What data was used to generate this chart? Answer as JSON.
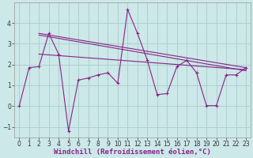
{
  "xlabel": "Windchill (Refroidissement éolien,°C)",
  "background_color": "#cce8e8",
  "grid_color": "#aacccc",
  "line_color": "#882288",
  "x_data": [
    0,
    1,
    2,
    3,
    4,
    5,
    6,
    7,
    8,
    9,
    10,
    11,
    12,
    13,
    14,
    15,
    16,
    17,
    18,
    19,
    20,
    21,
    22,
    23
  ],
  "series1": [
    0.0,
    1.85,
    1.9,
    3.5,
    2.5,
    -1.2,
    1.25,
    1.35,
    1.5,
    1.6,
    1.1,
    4.65,
    3.5,
    2.2,
    0.55,
    0.6,
    1.9,
    2.2,
    1.6,
    0.02,
    0.02,
    1.5,
    1.5,
    1.85
  ],
  "trend1_x": [
    2,
    23
  ],
  "trend1_y": [
    3.5,
    1.85
  ],
  "trend2_x": [
    2,
    23
  ],
  "trend2_y": [
    3.42,
    1.7
  ],
  "trend3_x": [
    2,
    23
  ],
  "trend3_y": [
    2.5,
    1.75
  ],
  "ylim": [
    -1.5,
    5.0
  ],
  "xlim": [
    -0.5,
    23.5
  ],
  "yticks": [
    -1,
    0,
    1,
    2,
    3,
    4
  ],
  "xticks": [
    0,
    1,
    2,
    3,
    4,
    5,
    6,
    7,
    8,
    9,
    10,
    11,
    12,
    13,
    14,
    15,
    16,
    17,
    18,
    19,
    20,
    21,
    22,
    23
  ],
  "tick_fontsize": 5.5,
  "xlabel_fontsize": 6.5,
  "linewidth": 0.8,
  "markersize": 3.0
}
